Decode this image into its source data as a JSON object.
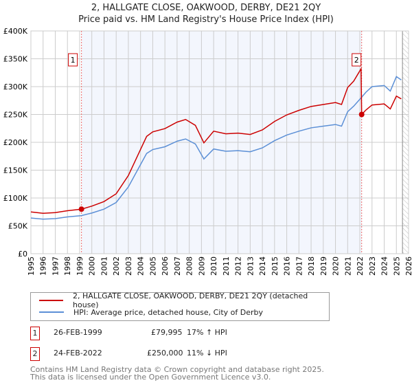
{
  "chart_data": {
    "type": "line",
    "title": "2, HALLGATE CLOSE, OAKWOOD, DERBY, DE21 2QY",
    "subtitle": "Price paid vs. HM Land Registry's House Price Index (HPI)",
    "xlim": [
      1995,
      2026
    ],
    "ylim": [
      0,
      400000
    ],
    "x_ticks": [
      "1995",
      "1996",
      "1997",
      "1998",
      "1999",
      "2000",
      "2001",
      "2002",
      "2003",
      "2004",
      "2005",
      "2006",
      "2007",
      "2008",
      "2009",
      "2010",
      "2011",
      "2012",
      "2013",
      "2014",
      "2015",
      "2016",
      "2017",
      "2018",
      "2019",
      "2020",
      "2021",
      "2022",
      "2023",
      "2024",
      "2025",
      "2026"
    ],
    "y_ticks": [
      {
        "v": 0,
        "label": "£0"
      },
      {
        "v": 50000,
        "label": "£50K"
      },
      {
        "v": 100000,
        "label": "£100K"
      },
      {
        "v": 150000,
        "label": "£150K"
      },
      {
        "v": 200000,
        "label": "£200K"
      },
      {
        "v": 250000,
        "label": "£250K"
      },
      {
        "v": 300000,
        "label": "£300K"
      },
      {
        "v": 350000,
        "label": "£350K"
      },
      {
        "v": 400000,
        "label": "£400K"
      }
    ],
    "grid": true,
    "series": [
      {
        "name": "2, HALLGATE CLOSE, OAKWOOD, DERBY, DE21 2QY (detached house)",
        "color": "#cc0000",
        "x": [
          1995,
          1996,
          1997,
          1998,
          1999.15,
          2000,
          2001,
          2002,
          2003,
          2004,
          2004.5,
          2005,
          2006,
          2007,
          2007.7,
          2008.5,
          2009.2,
          2010,
          2011,
          2012,
          2013,
          2014,
          2015,
          2016,
          2017,
          2018,
          2019,
          2020,
          2020.5,
          2021,
          2021.5,
          2022.1,
          2022.15,
          2022.5,
          2023,
          2024,
          2024.5,
          2025,
          2025.4
        ],
        "y": [
          75000,
          72500,
          73700,
          77200,
          79995,
          85400,
          93600,
          107600,
          140400,
          187200,
          210600,
          218800,
          224600,
          236300,
          241000,
          230500,
          199000,
          220000,
          215300,
          216500,
          214100,
          222300,
          237500,
          249200,
          257400,
          264400,
          267900,
          271400,
          268000,
          298400,
          310000,
          332000,
          250000,
          258000,
          267000,
          269000,
          260000,
          283000,
          278000
        ]
      },
      {
        "name": "HPI: Average price, detached house, City of Derby",
        "color": "#5b8fd6",
        "x": [
          1995,
          1996,
          1997,
          1998,
          1999.15,
          2000,
          2001,
          2002,
          2003,
          2004,
          2004.5,
          2005,
          2006,
          2007,
          2007.7,
          2008.5,
          2009.2,
          2010,
          2011,
          2012,
          2013,
          2014,
          2015,
          2016,
          2017,
          2018,
          2019,
          2020,
          2020.5,
          2021,
          2021.5,
          2022.15,
          2022.5,
          2023,
          2024,
          2024.5,
          2025,
          2025.4
        ],
        "y": [
          64000,
          62000,
          63000,
          66000,
          68400,
          73000,
          80000,
          92000,
          120000,
          160000,
          180000,
          187000,
          192000,
          202000,
          206000,
          197000,
          170000,
          188000,
          184000,
          185000,
          183000,
          190000,
          203000,
          213000,
          220000,
          226000,
          229000,
          232000,
          229000,
          255000,
          265000,
          281000,
          290000,
          300000,
          302000,
          292000,
          318000,
          312000
        ]
      }
    ],
    "sales": [
      {
        "id": "1",
        "x": 1999.15,
        "y": 79995
      },
      {
        "id": "2",
        "x": 2022.15,
        "y": 250000
      }
    ],
    "shade_range": [
      1999.15,
      2022.15
    ],
    "future_from": 2025.5
  },
  "legend": {
    "red": "2, HALLGATE CLOSE, OAKWOOD, DERBY, DE21 2QY (detached house)",
    "blue": "HPI: Average price, detached house, City of Derby"
  },
  "transactions": [
    {
      "id": "1",
      "date": "26-FEB-1999",
      "price": "£79,995",
      "hpi": "17% ↑ HPI"
    },
    {
      "id": "2",
      "date": "24-FEB-2022",
      "price": "£250,000",
      "hpi": "11% ↓ HPI"
    }
  ],
  "footer": {
    "line1": "Contains HM Land Registry data © Crown copyright and database right 2025.",
    "line2": "This data is licensed under the Open Government Licence v3.0."
  }
}
